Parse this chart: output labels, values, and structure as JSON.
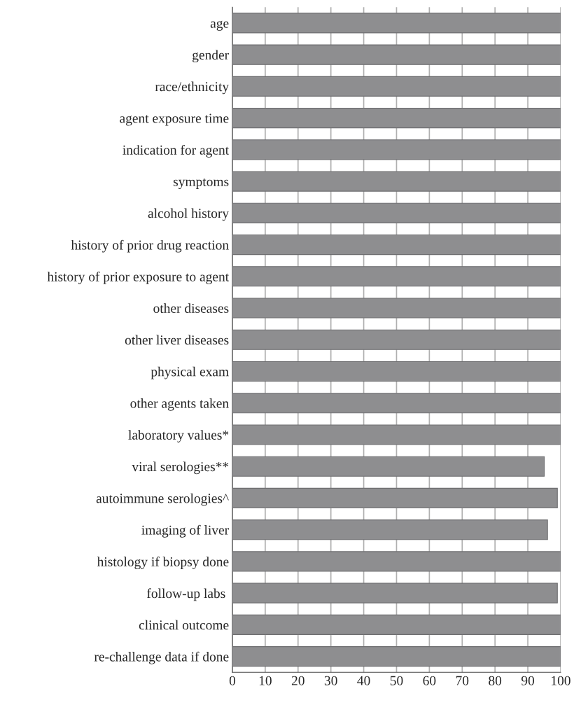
{
  "chart_data": {
    "type": "bar",
    "orientation": "horizontal",
    "categories": [
      "age",
      "gender",
      "race/ethnicity",
      "agent exposure time",
      "indication for agent",
      "symptoms",
      "alcohol history",
      "history of prior drug reaction",
      "history of prior exposure to agent",
      "other diseases",
      "other liver diseases",
      "physical exam",
      "other agents taken",
      "laboratory values*",
      "viral serologies**",
      "autoimmune serologies^",
      "imaging of liver",
      "histology if biopsy done",
      "follow-up labs ",
      "clinical outcome",
      "re-challenge data if done"
    ],
    "values": [
      100,
      100,
      100,
      100,
      100,
      100,
      100,
      100,
      100,
      100,
      100,
      100,
      100,
      100,
      95,
      99,
      96,
      100,
      99,
      100,
      100
    ],
    "color": "#8e8e90",
    "xlim": [
      0,
      100
    ],
    "xticks": [
      0,
      10,
      20,
      30,
      40,
      50,
      60,
      70,
      80,
      90,
      100
    ],
    "grid": "x"
  }
}
